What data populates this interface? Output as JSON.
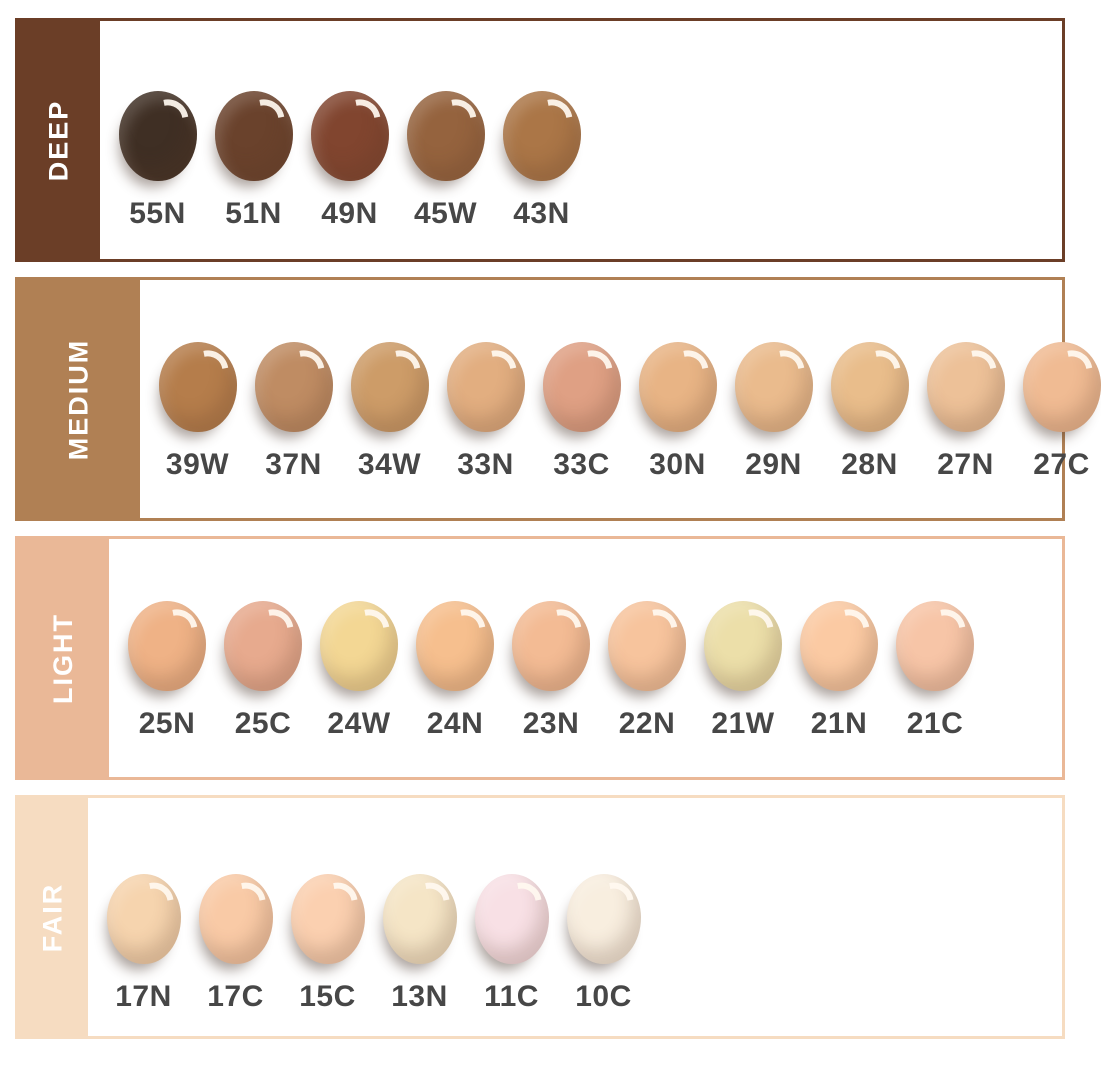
{
  "page": {
    "background": "#ffffff",
    "shade_code_text_color": "#474747",
    "sidebar_text_color": "#ffffff"
  },
  "rows": [
    {
      "label": "DEEP",
      "color": "#6b3e27",
      "shades": [
        {
          "code": "55N",
          "color": "#3f2f24"
        },
        {
          "code": "51N",
          "color": "#6a422c"
        },
        {
          "code": "49N",
          "color": "#81452f"
        },
        {
          "code": "45W",
          "color": "#95633e"
        },
        {
          "code": "43N",
          "color": "#ab7647"
        }
      ]
    },
    {
      "label": "MEDIUM",
      "color": "#b08054",
      "shades": [
        {
          "code": "39W",
          "color": "#b57d4b"
        },
        {
          "code": "37N",
          "color": "#bf8c63"
        },
        {
          "code": "34W",
          "color": "#cd9c68"
        },
        {
          "code": "33N",
          "color": "#e2ae80"
        },
        {
          "code": "33C",
          "color": "#dfa084"
        },
        {
          "code": "30N",
          "color": "#e8b485"
        },
        {
          "code": "29N",
          "color": "#eabb8d"
        },
        {
          "code": "28N",
          "color": "#e9bd8b"
        },
        {
          "code": "27N",
          "color": "#edc198"
        },
        {
          "code": "27C",
          "color": "#f0bb93"
        }
      ]
    },
    {
      "label": "LIGHT",
      "color": "#eab897",
      "shades": [
        {
          "code": "25N",
          "color": "#efb286"
        },
        {
          "code": "25C",
          "color": "#e7aa8e"
        },
        {
          "code": "24W",
          "color": "#f3d794"
        },
        {
          "code": "24N",
          "color": "#f6bf8e"
        },
        {
          "code": "23N",
          "color": "#f3bb94"
        },
        {
          "code": "22N",
          "color": "#f7c49d"
        },
        {
          "code": "21W",
          "color": "#ecdfa9"
        },
        {
          "code": "21N",
          "color": "#fbcaa3"
        },
        {
          "code": "21C",
          "color": "#f7c5a7"
        }
      ]
    },
    {
      "label": "FAIR",
      "color": "#f6dcc1",
      "shades": [
        {
          "code": "17N",
          "color": "#f6d4ae"
        },
        {
          "code": "17C",
          "color": "#f9caa6"
        },
        {
          "code": "15C",
          "color": "#fbd0b0"
        },
        {
          "code": "13N",
          "color": "#f5e5c6"
        },
        {
          "code": "11C",
          "color": "#f8e0e5"
        },
        {
          "code": "10C",
          "color": "#f8eedf"
        }
      ]
    }
  ],
  "chart_data": {
    "type": "table",
    "title": "",
    "categories": [
      "DEEP",
      "MEDIUM",
      "LIGHT",
      "FAIR"
    ],
    "series": [
      {
        "name": "DEEP",
        "values": [
          "55N",
          "51N",
          "49N",
          "45W",
          "43N"
        ]
      },
      {
        "name": "MEDIUM",
        "values": [
          "39W",
          "37N",
          "34W",
          "33N",
          "33C",
          "30N",
          "29N",
          "28N",
          "27N",
          "27C"
        ]
      },
      {
        "name": "LIGHT",
        "values": [
          "25N",
          "25C",
          "24W",
          "24N",
          "23N",
          "22N",
          "21W",
          "21N",
          "21C"
        ]
      },
      {
        "name": "FAIR",
        "values": [
          "17N",
          "17C",
          "15C",
          "13N",
          "11C",
          "10C"
        ]
      }
    ],
    "legend_position": "left-sidebar-per-row",
    "grid": false
  }
}
